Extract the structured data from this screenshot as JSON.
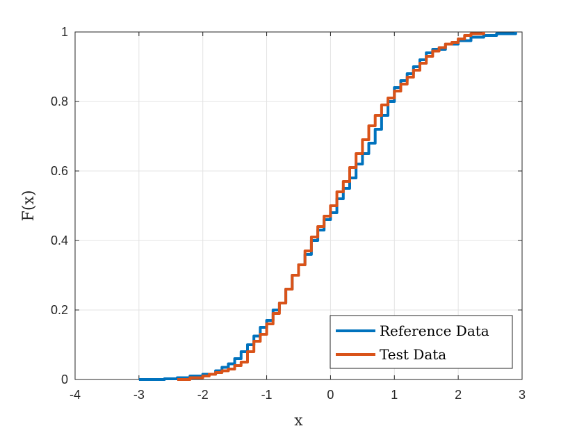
{
  "chart_data": {
    "type": "line",
    "title": "",
    "xlabel": "x",
    "ylabel": "F(x)",
    "xlim": [
      -4,
      3
    ],
    "ylim": [
      0,
      1
    ],
    "xticks": [
      -4,
      -3,
      -2,
      -1,
      0,
      1,
      2,
      3
    ],
    "yticks": [
      0,
      0.2,
      0.4,
      0.6,
      0.8,
      1
    ],
    "xtick_labels": [
      "-4",
      "-3",
      "-2",
      "-1",
      "0",
      "1",
      "2",
      "3"
    ],
    "ytick_labels": [
      "0",
      "0.2",
      "0.4",
      "0.6",
      "0.8",
      "1"
    ],
    "grid": true,
    "legend_position": "bottom-right",
    "series": [
      {
        "name": "Reference Data",
        "color": "#0072BD",
        "x": [
          -3.0,
          -2.6,
          -2.4,
          -2.2,
          -2.0,
          -1.8,
          -1.7,
          -1.6,
          -1.5,
          -1.4,
          -1.3,
          -1.2,
          -1.1,
          -1.0,
          -0.9,
          -0.8,
          -0.7,
          -0.6,
          -0.5,
          -0.4,
          -0.3,
          -0.2,
          -0.1,
          0.0,
          0.1,
          0.2,
          0.3,
          0.4,
          0.5,
          0.6,
          0.7,
          0.8,
          0.9,
          1.0,
          1.1,
          1.2,
          1.3,
          1.4,
          1.5,
          1.6,
          1.8,
          2.0,
          2.2,
          2.4,
          2.6,
          2.9
        ],
        "y": [
          0.0,
          0.002,
          0.005,
          0.01,
          0.015,
          0.025,
          0.035,
          0.045,
          0.06,
          0.08,
          0.1,
          0.125,
          0.15,
          0.17,
          0.2,
          0.22,
          0.26,
          0.3,
          0.33,
          0.36,
          0.4,
          0.43,
          0.46,
          0.48,
          0.52,
          0.55,
          0.58,
          0.62,
          0.65,
          0.68,
          0.72,
          0.76,
          0.8,
          0.84,
          0.86,
          0.88,
          0.9,
          0.92,
          0.94,
          0.95,
          0.965,
          0.975,
          0.985,
          0.99,
          0.995,
          1.0
        ]
      },
      {
        "name": "Test Data",
        "color": "#D95319",
        "x": [
          -2.4,
          -2.2,
          -2.0,
          -1.9,
          -1.8,
          -1.7,
          -1.6,
          -1.5,
          -1.4,
          -1.3,
          -1.2,
          -1.1,
          -1.0,
          -0.9,
          -0.8,
          -0.7,
          -0.6,
          -0.5,
          -0.4,
          -0.3,
          -0.2,
          -0.1,
          0.0,
          0.1,
          0.2,
          0.3,
          0.4,
          0.5,
          0.6,
          0.7,
          0.8,
          0.9,
          1.0,
          1.1,
          1.2,
          1.3,
          1.4,
          1.5,
          1.6,
          1.7,
          1.8,
          1.9,
          2.0,
          2.1,
          2.2,
          2.4
        ],
        "y": [
          0.0,
          0.005,
          0.01,
          0.015,
          0.02,
          0.025,
          0.03,
          0.04,
          0.05,
          0.08,
          0.11,
          0.13,
          0.16,
          0.19,
          0.22,
          0.26,
          0.3,
          0.33,
          0.37,
          0.41,
          0.44,
          0.47,
          0.5,
          0.54,
          0.57,
          0.61,
          0.65,
          0.69,
          0.73,
          0.76,
          0.79,
          0.81,
          0.83,
          0.85,
          0.87,
          0.89,
          0.91,
          0.93,
          0.945,
          0.955,
          0.965,
          0.97,
          0.98,
          0.99,
          0.995,
          1.0
        ]
      }
    ]
  }
}
